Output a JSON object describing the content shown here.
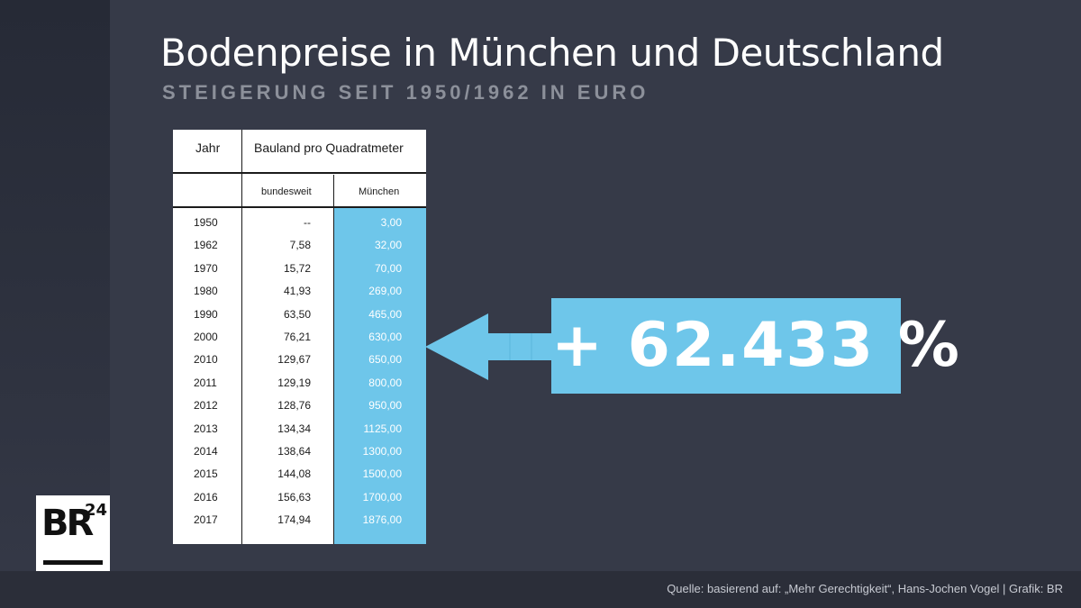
{
  "header": {
    "title": "Bodenpreise in München und Deutschland",
    "subtitle": "STEIGERUNG SEIT 1950/1962 IN EURO"
  },
  "table": {
    "col_year": "Jahr",
    "col_group": "Bauland pro Quadratmeter",
    "col_bund": "bundesweit",
    "col_muen": "München"
  },
  "chart_data": {
    "type": "table",
    "title": "Bodenpreise in München und Deutschland",
    "subtitle": "STEIGERUNG SEIT 1950/1962 IN EURO",
    "columns": [
      "Jahr",
      "bundesweit",
      "München"
    ],
    "rows": [
      [
        "1950",
        "--",
        "3,00"
      ],
      [
        "1962",
        "7,58",
        "32,00"
      ],
      [
        "1970",
        "15,72",
        "70,00"
      ],
      [
        "1980",
        "41,93",
        "269,00"
      ],
      [
        "1990",
        "63,50",
        "465,00"
      ],
      [
        "2000",
        "76,21",
        "630,00"
      ],
      [
        "2010",
        "129,67",
        "650,00"
      ],
      [
        "2011",
        "129,19",
        "800,00"
      ],
      [
        "2012",
        "128,76",
        "950,00"
      ],
      [
        "2013",
        "134,34",
        "1125,00"
      ],
      [
        "2014",
        "138,64",
        "1300,00"
      ],
      [
        "2015",
        "144,08",
        "1500,00"
      ],
      [
        "2016",
        "156,63",
        "1700,00"
      ],
      [
        "2017",
        "174,94",
        "1876,00"
      ]
    ],
    "annotation": "+ 62.433 %"
  },
  "callout": {
    "text": "+ 62.433 %"
  },
  "logo": {
    "br": "BR",
    "num": "24"
  },
  "footer": {
    "source": "Quelle: basierend auf: „Mehr Gerechtigkeit“, Hans-Jochen Vogel | Grafik: BR"
  },
  "colors": {
    "accent": "#6ec6ea",
    "background": "#363a48"
  }
}
